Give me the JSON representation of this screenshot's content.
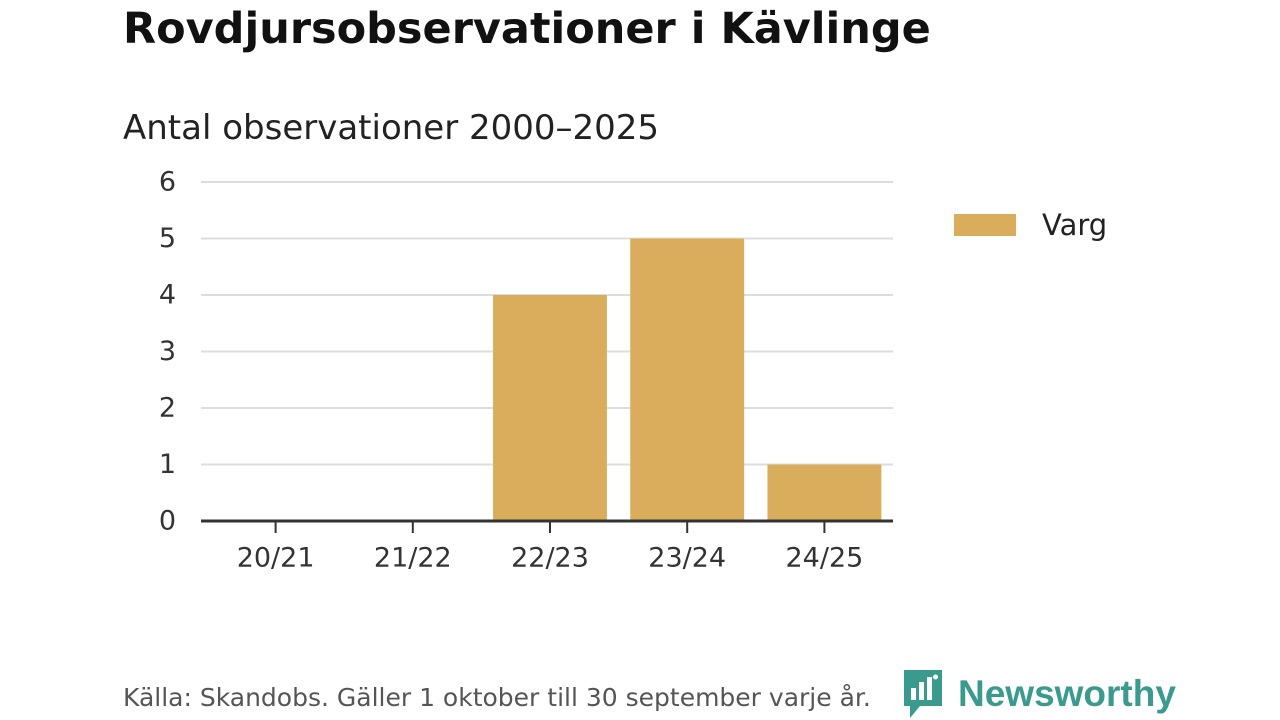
{
  "header": {
    "title": "Rovdjursobservationer i Kävlinge",
    "subtitle": "Antal observationer 2000–2025"
  },
  "chart_data": {
    "type": "bar",
    "categories": [
      "20/21",
      "21/22",
      "22/23",
      "23/24",
      "24/25"
    ],
    "series": [
      {
        "name": "Varg",
        "values": [
          0,
          0,
          4,
          5,
          1
        ],
        "color": "#d9ad5b"
      }
    ],
    "ylim": [
      0,
      6
    ],
    "yticks": [
      "0",
      "1",
      "2",
      "3",
      "4",
      "5",
      "6"
    ],
    "grid": true,
    "legend_position": "right"
  },
  "legend": {
    "label": "Varg",
    "color": "#d9ad5b"
  },
  "footer": {
    "note": "Källa: Skandobs. Gäller 1 oktober till 30 september varje år.",
    "brand": "Newsworthy",
    "brand_color": "#3a9a8e",
    "brand_icon": "bar-chart-speech-bubble-icon"
  }
}
